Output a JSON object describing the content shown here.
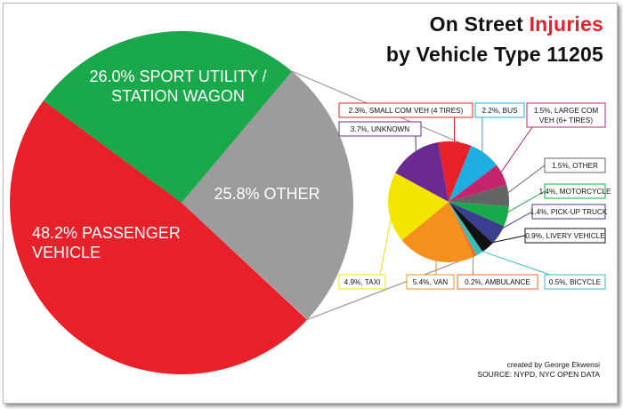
{
  "title": {
    "line1_pre": "On Street ",
    "line1_highlight": "Injuries",
    "line2": "by Vehicle Type 11205"
  },
  "credit": {
    "author": "created by George Ekwensi",
    "source": "SOURCE: NYPD, NYC OPEN DATA"
  },
  "colors": {
    "passenger": "#e8202a",
    "suv": "#19a94a",
    "other_group": "#9c9c9c",
    "small_com": "#e8202a",
    "bus": "#1eaee0",
    "large_com": "#c4246c",
    "other": "#646464",
    "motorcycle": "#19a94a",
    "pickup": "#3b3e8e",
    "livery": "#111111",
    "bicycle": "#3dbdb8",
    "ambulance": "#f06a23",
    "van": "#f4901e",
    "taxi": "#f2e600",
    "unknown": "#6a2a8f"
  },
  "chart_data": [
    {
      "type": "pie",
      "title": "On Street Injuries by Vehicle Type 11205",
      "slices": [
        {
          "label": "PASSENGER VEHICLE",
          "value": 48.2,
          "text_lines": [
            "48.2% PASSENGER",
            "VEHICLE"
          ],
          "color": "#e8202a"
        },
        {
          "label": "SPORT UTILITY / STATION WAGON",
          "value": 26.0,
          "text_lines": [
            "26.0% SPORT UTILITY /",
            "STATION WAGON"
          ],
          "color": "#19a94a"
        },
        {
          "label": "OTHER",
          "value": 25.8,
          "text_lines": [
            "25.8% OTHER"
          ],
          "color": "#9c9c9c"
        }
      ]
    },
    {
      "type": "pie",
      "breakdown_of": "OTHER",
      "slices": [
        {
          "label": "SMALL COM  VEH (4 TIRES)",
          "value": 2.3,
          "text_lines": [
            "2.3%, SMALL COM  VEH (4 TIRES)"
          ],
          "color": "#e8202a"
        },
        {
          "label": "BUS",
          "value": 2.2,
          "text_lines": [
            "2.2%, BUS"
          ],
          "color": "#1eaee0"
        },
        {
          "label": "LARGE COM VEH (6+ TIRES)",
          "value": 1.5,
          "text_lines": [
            "1.5%, LARGE COM",
            "VEH (6+ TIRES)"
          ],
          "color": "#c4246c"
        },
        {
          "label": "OTHER",
          "value": 1.5,
          "text_lines": [
            "1.5%, OTHER"
          ],
          "color": "#646464"
        },
        {
          "label": "MOTORCYCLE",
          "value": 1.4,
          "text_lines": [
            "1.4%, MOTORCYCLE"
          ],
          "color": "#19a94a"
        },
        {
          "label": "PICK-UP TRUCK",
          "value": 1.4,
          "text_lines": [
            "1.4%, PICK-UP TRUCK"
          ],
          "color": "#3b3e8e"
        },
        {
          "label": "LIVERY VEHICLE",
          "value": 0.9,
          "text_lines": [
            "0.9%, LIVERY VEHICLE"
          ],
          "color": "#111111"
        },
        {
          "label": "BICYCLE",
          "value": 0.5,
          "text_lines": [
            "0.5%, BICYCLE"
          ],
          "color": "#3dbdb8"
        },
        {
          "label": "AMBULANCE",
          "value": 0.2,
          "text_lines": [
            "0.2%, AMBULANCE"
          ],
          "color": "#f06a23"
        },
        {
          "label": "VAN",
          "value": 5.4,
          "text_lines": [
            "5.4%, VAN"
          ],
          "color": "#f4901e"
        },
        {
          "label": "TAXI",
          "value": 4.9,
          "text_lines": [
            "4.9%, TAXI"
          ],
          "color": "#f2e600"
        },
        {
          "label": "UNKNOWN",
          "value": 3.7,
          "text_lines": [
            "3.7%, UNKNOWN"
          ],
          "color": "#6a2a8f"
        }
      ]
    }
  ]
}
